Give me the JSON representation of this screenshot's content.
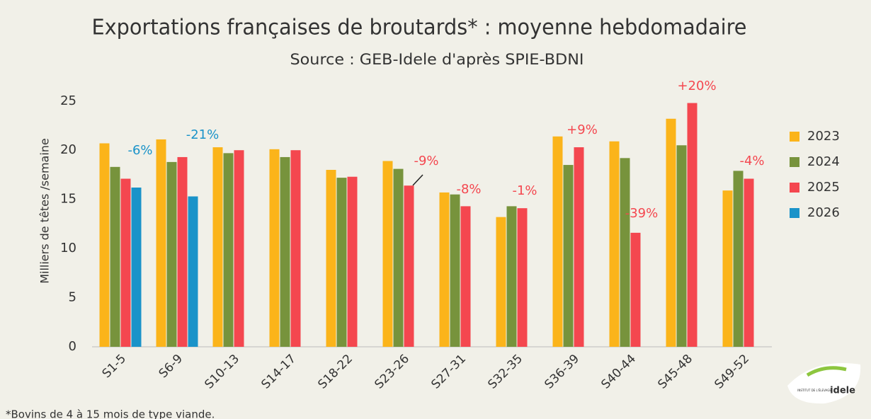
{
  "chart_data": {
    "type": "bar",
    "title": "Exportations françaises de broutards* : moyenne hebdomadaire",
    "subtitle": "Source : GEB-Idele d'après SPIE-BDNI",
    "y_label": "Milliers de têtes /semaine",
    "footnote": "*Bovins de 4 à 15 mois de type viande.",
    "categories": [
      "S1-5",
      "S6-9",
      "S10-13",
      "S14-17",
      "S18-22",
      "S23-26",
      "S27-31",
      "S32-35",
      "S36-39",
      "S40-44",
      "S45-48",
      "S49-52"
    ],
    "series": [
      {
        "name": "2023",
        "color": "#fbb41a",
        "values": [
          20.7,
          21.1,
          20.3,
          20.1,
          18.0,
          18.9,
          15.7,
          13.2,
          21.4,
          20.9,
          23.2,
          15.9
        ]
      },
      {
        "name": "2024",
        "color": "#77933c",
        "values": [
          18.3,
          18.8,
          19.7,
          19.3,
          17.2,
          18.1,
          15.5,
          14.3,
          18.5,
          19.2,
          20.5,
          17.9
        ]
      },
      {
        "name": "2025",
        "color": "#f4474f",
        "values": [
          17.1,
          19.3,
          20.0,
          20.0,
          17.3,
          16.4,
          14.3,
          14.1,
          20.3,
          11.6,
          24.8,
          17.1
        ]
      },
      {
        "name": "2026",
        "color": "#1a93c9",
        "values": [
          16.2,
          15.3,
          null,
          null,
          null,
          null,
          null,
          null,
          null,
          null,
          null,
          null
        ]
      }
    ],
    "ylim": [
      0,
      27
    ],
    "yticks": [
      0,
      5,
      10,
      15,
      20,
      25
    ],
    "legend": "right",
    "annotations": [
      {
        "text": "-6%",
        "color": "#1a93c9"
      },
      {
        "text": "-21%",
        "color": "#1a93c9"
      },
      {
        "text": "-9%",
        "color": "#f4474f"
      },
      {
        "text": "-8%",
        "color": "#f4474f"
      },
      {
        "text": "-1%",
        "color": "#f4474f"
      },
      {
        "text": "+9%",
        "color": "#f4474f"
      },
      {
        "text": "-39%",
        "color": "#f4474f"
      },
      {
        "text": "+20%",
        "color": "#f4474f"
      },
      {
        "text": "-4%",
        "color": "#f4474f"
      }
    ],
    "logo": {
      "name": "idele",
      "subtitle": "INSTITUT DE L'ÉLEVAGE"
    }
  }
}
